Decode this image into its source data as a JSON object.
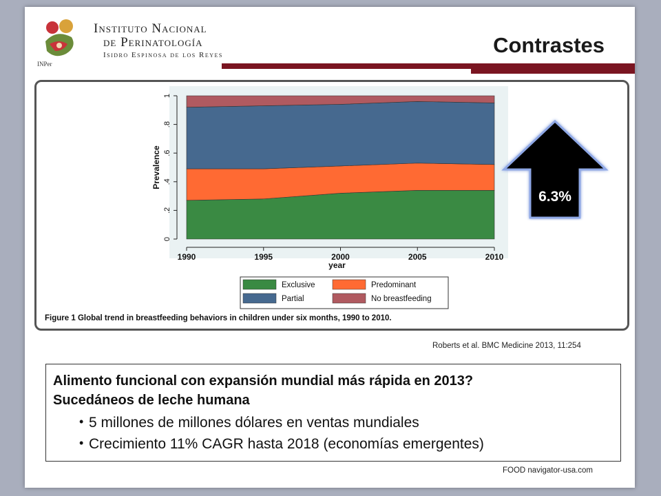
{
  "header": {
    "institute_line1": "Instituto Nacional",
    "institute_line2": "de Perinatología",
    "institute_line3": "Isidro Espinosa de los Reyes",
    "logo_label": "INPer",
    "title": "Contrastes",
    "accent_color": "#7a1521"
  },
  "arrow": {
    "label": "6.3%",
    "icon": "up-arrow-icon"
  },
  "citation": "Roberts et al. BMC Medicine 2013, 11:254",
  "textbox": {
    "heading1": "Alimento funcional con expansión mundial más rápida en 2013?",
    "heading2": "Sucedáneos de leche humana",
    "bullets": [
      "5 millones de millones dólares en ventas mundiales",
      "Crecimiento 11% CAGR hasta 2018 (economías emergentes)"
    ]
  },
  "source": "FOOD navigator-usa.com",
  "chart_data": {
    "type": "area",
    "stacked": true,
    "caption_bold": "Figure 1",
    "caption_text": "Global trend in breastfeeding behaviors in children under six months, 1990 to 2010.",
    "xlabel": "year",
    "ylabel": "Prevalence",
    "xlim": [
      1990,
      2010
    ],
    "ylim": [
      0,
      1
    ],
    "xticks": [
      1990,
      1995,
      2000,
      2005,
      2010
    ],
    "xtick_labels": [
      "1990",
      "1995",
      "2000",
      "2005",
      "2010"
    ],
    "yticks": [
      0,
      0.2,
      0.4,
      0.6,
      0.8,
      1
    ],
    "ytick_labels": [
      "0",
      ".2",
      ".4",
      ".6",
      ".8",
      "1"
    ],
    "legend_position": "bottom",
    "x": [
      1990,
      1995,
      2000,
      2005,
      2010
    ],
    "series": [
      {
        "name": "Exclusive",
        "color": "#3a8a43",
        "values": [
          0.27,
          0.28,
          0.32,
          0.34,
          0.34
        ]
      },
      {
        "name": "Predominant",
        "color": "#ff6a33",
        "values": [
          0.22,
          0.21,
          0.19,
          0.19,
          0.18
        ]
      },
      {
        "name": "Partial",
        "color": "#46698f",
        "values": [
          0.43,
          0.44,
          0.43,
          0.43,
          0.43
        ]
      },
      {
        "name": "No breastfeeding",
        "color": "#b05a60",
        "values": [
          0.08,
          0.07,
          0.06,
          0.04,
          0.05
        ]
      }
    ]
  }
}
